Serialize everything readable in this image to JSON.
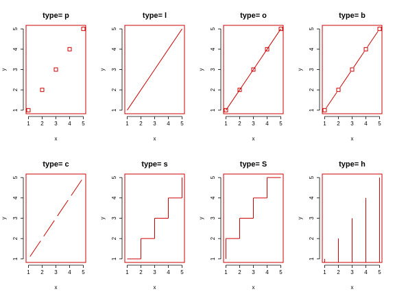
{
  "chart_data": [
    {
      "type": "scatter",
      "title": "type= p",
      "plot_type": "p",
      "xlabel": "x",
      "ylabel": "y",
      "x": [
        1,
        2,
        3,
        4,
        5
      ],
      "y": [
        1,
        2,
        3,
        4,
        5
      ],
      "xticks": [
        "1",
        "2",
        "3",
        "4",
        "5"
      ],
      "yticks": [
        "1",
        "2",
        "3",
        "4",
        "5"
      ],
      "xlim": [
        1,
        5
      ],
      "ylim": [
        1,
        5
      ]
    },
    {
      "type": "line",
      "title": "type= l",
      "plot_type": "l",
      "xlabel": "x",
      "ylabel": "y",
      "x": [
        1,
        2,
        3,
        4,
        5
      ],
      "y": [
        1,
        2,
        3,
        4,
        5
      ],
      "xticks": [
        "1",
        "2",
        "3",
        "4",
        "5"
      ],
      "yticks": [
        "1",
        "2",
        "3",
        "4",
        "5"
      ],
      "xlim": [
        1,
        5
      ],
      "ylim": [
        1,
        5
      ]
    },
    {
      "type": "line",
      "title": "type= o",
      "plot_type": "o",
      "xlabel": "x",
      "ylabel": "y",
      "x": [
        1,
        2,
        3,
        4,
        5
      ],
      "y": [
        1,
        2,
        3,
        4,
        5
      ],
      "xticks": [
        "1",
        "2",
        "3",
        "4",
        "5"
      ],
      "yticks": [
        "1",
        "2",
        "3",
        "4",
        "5"
      ],
      "xlim": [
        1,
        5
      ],
      "ylim": [
        1,
        5
      ]
    },
    {
      "type": "line",
      "title": "type= b",
      "plot_type": "b",
      "xlabel": "x",
      "ylabel": "y",
      "x": [
        1,
        2,
        3,
        4,
        5
      ],
      "y": [
        1,
        2,
        3,
        4,
        5
      ],
      "xticks": [
        "1",
        "2",
        "3",
        "4",
        "5"
      ],
      "yticks": [
        "1",
        "2",
        "3",
        "4",
        "5"
      ],
      "xlim": [
        1,
        5
      ],
      "ylim": [
        1,
        5
      ]
    },
    {
      "type": "line",
      "title": "type= c",
      "plot_type": "c",
      "xlabel": "x",
      "ylabel": "y",
      "x": [
        1,
        2,
        3,
        4,
        5
      ],
      "y": [
        1,
        2,
        3,
        4,
        5
      ],
      "xticks": [
        "1",
        "2",
        "3",
        "4",
        "5"
      ],
      "yticks": [
        "1",
        "2",
        "3",
        "4",
        "5"
      ],
      "xlim": [
        1,
        5
      ],
      "ylim": [
        1,
        5
      ]
    },
    {
      "type": "line",
      "title": "type= s",
      "plot_type": "s",
      "xlabel": "x",
      "ylabel": "y",
      "x": [
        1,
        2,
        3,
        4,
        5
      ],
      "y": [
        1,
        2,
        3,
        4,
        5
      ],
      "xticks": [
        "1",
        "2",
        "3",
        "4",
        "5"
      ],
      "yticks": [
        "1",
        "2",
        "3",
        "4",
        "5"
      ],
      "xlim": [
        1,
        5
      ],
      "ylim": [
        1,
        5
      ]
    },
    {
      "type": "line",
      "title": "type= S",
      "plot_type": "S",
      "xlabel": "x",
      "ylabel": "y",
      "x": [
        1,
        2,
        3,
        4,
        5
      ],
      "y": [
        1,
        2,
        3,
        4,
        5
      ],
      "xticks": [
        "1",
        "2",
        "3",
        "4",
        "5"
      ],
      "yticks": [
        "1",
        "2",
        "3",
        "4",
        "5"
      ],
      "xlim": [
        1,
        5
      ],
      "ylim": [
        1,
        5
      ]
    },
    {
      "type": "bar",
      "title": "type= h",
      "plot_type": "h",
      "xlabel": "x",
      "ylabel": "y",
      "x": [
        1,
        2,
        3,
        4,
        5
      ],
      "y": [
        1,
        2,
        3,
        4,
        5
      ],
      "xticks": [
        "1",
        "2",
        "3",
        "4",
        "5"
      ],
      "yticks": [
        "1",
        "2",
        "3",
        "4",
        "5"
      ],
      "xlim": [
        1,
        5
      ],
      "ylim": [
        1,
        5
      ]
    }
  ],
  "colors": {
    "box": "#cc0000",
    "data": "#cc0000",
    "text": "#000000"
  }
}
